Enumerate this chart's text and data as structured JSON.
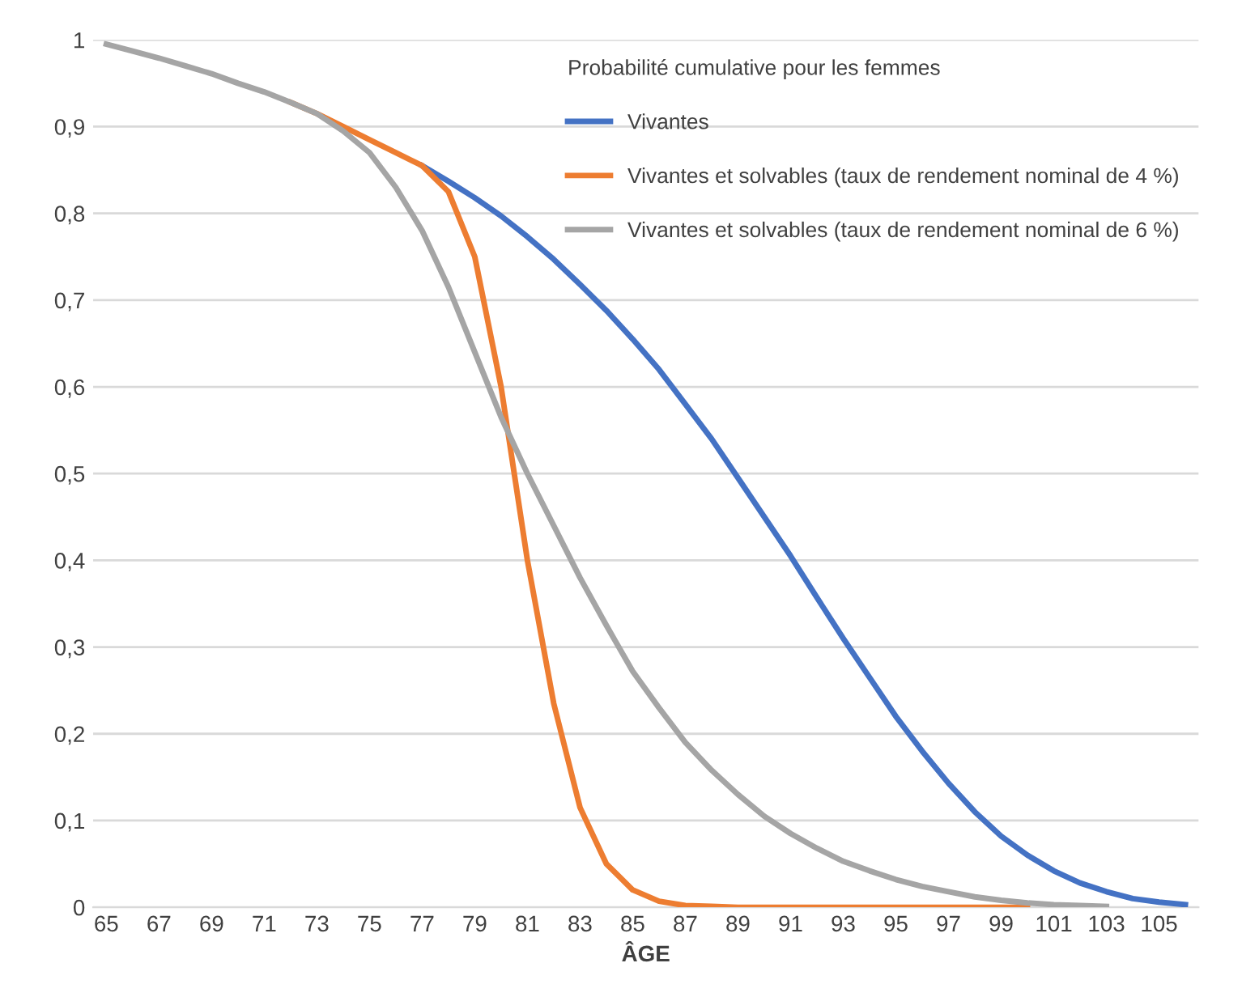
{
  "chart_data": {
    "type": "line",
    "xlabel": "ÂGE",
    "legend_title": "Probabilité cumulative pour les femmes",
    "x": [
      65,
      66,
      67,
      68,
      69,
      70,
      71,
      72,
      73,
      74,
      75,
      76,
      77,
      78,
      79,
      80,
      81,
      82,
      83,
      84,
      85,
      86,
      87,
      88,
      89,
      90,
      91,
      92,
      93,
      94,
      95,
      96,
      97,
      98,
      99,
      100,
      101,
      102,
      103,
      104,
      105,
      106
    ],
    "series": [
      {
        "name": "Vivantes",
        "color": "#4472c4",
        "values": [
          null,
          null,
          null,
          null,
          null,
          null,
          null,
          null,
          null,
          null,
          null,
          null,
          0.855,
          0.837,
          0.818,
          0.797,
          0.773,
          0.747,
          0.718,
          0.688,
          0.655,
          0.62,
          0.58,
          0.54,
          0.495,
          0.45,
          0.405,
          0.357,
          0.31,
          0.265,
          0.22,
          0.18,
          0.143,
          0.11,
          0.082,
          0.06,
          0.042,
          0.028,
          0.018,
          0.01,
          0.006,
          0.003
        ]
      },
      {
        "name": "Vivantes et solvables (taux de rendement nominal de 4 %)",
        "color": "#ed7d31",
        "values": [
          null,
          null,
          null,
          null,
          null,
          null,
          null,
          0.928,
          0.915,
          0.9,
          0.885,
          0.87,
          0.855,
          0.825,
          0.75,
          0.6,
          0.4,
          0.235,
          0.115,
          0.05,
          0.02,
          0.007,
          0.002,
          0.001,
          0,
          0,
          0,
          0,
          0,
          0,
          0,
          0,
          0,
          0,
          0,
          0,
          null,
          null,
          null,
          null,
          null,
          null
        ]
      },
      {
        "name": "Vivantes et solvables (taux de rendement nominal de 6 %)",
        "color": "#a5a5a5",
        "values": [
          0.995,
          0.987,
          0.979,
          0.97,
          0.961,
          0.95,
          0.94,
          0.928,
          0.915,
          0.895,
          0.87,
          0.83,
          0.78,
          0.715,
          0.64,
          0.565,
          0.5,
          0.44,
          0.38,
          0.325,
          0.272,
          0.23,
          0.19,
          0.158,
          0.13,
          0.105,
          0.085,
          0.068,
          0.053,
          0.042,
          0.032,
          0.024,
          0.018,
          0.012,
          0.008,
          0.005,
          0.003,
          0.002,
          0.001,
          null,
          null,
          null
        ]
      }
    ],
    "xlim": [
      64.5,
      106.5
    ],
    "xticks": [
      65,
      67,
      69,
      71,
      73,
      75,
      77,
      79,
      81,
      83,
      85,
      87,
      89,
      91,
      93,
      95,
      97,
      99,
      101,
      103,
      105
    ],
    "ylim": [
      0,
      1
    ],
    "yticks": [
      0,
      {
        "value": 0.1,
        "label": "0,1"
      },
      {
        "value": 0.2,
        "label": "0,2"
      },
      {
        "value": 0.3,
        "label": "0,3"
      },
      {
        "value": 0.4,
        "label": "0,4"
      },
      {
        "value": 0.5,
        "label": "0,5"
      },
      {
        "value": 0.6,
        "label": "0,6"
      },
      {
        "value": 0.7,
        "label": "0,7"
      },
      {
        "value": 0.8,
        "label": "0,8"
      },
      {
        "value": 0.9,
        "label": "0,9"
      },
      1
    ],
    "grid": "y",
    "legend": "top right",
    "marker": "none",
    "line_style": "solid"
  }
}
